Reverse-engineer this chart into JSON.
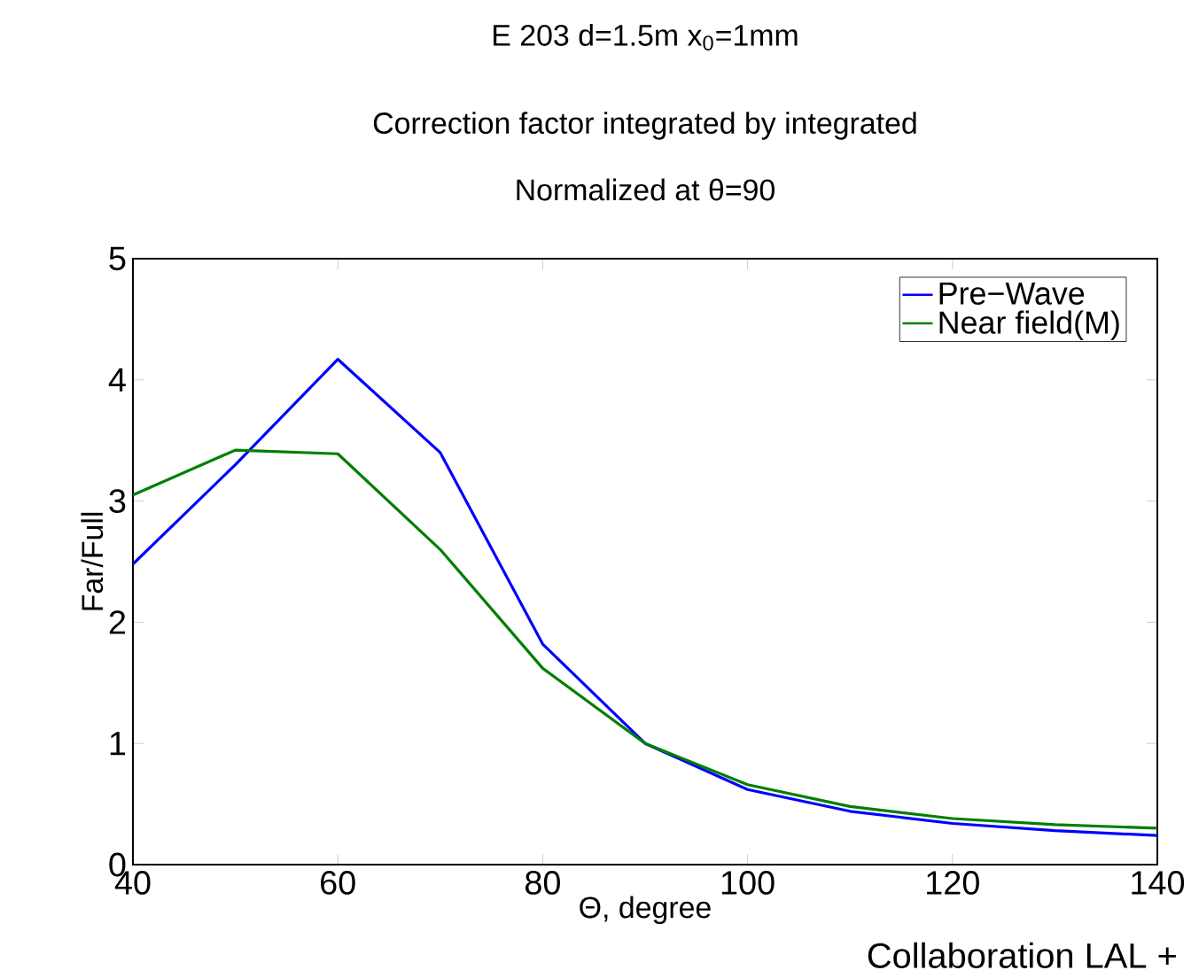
{
  "chart_data": {
    "type": "line",
    "title": "E 203 d=1.5m x$_{0}$=1mm",
    "subtitle": "Correction factor integrated by integrated",
    "annotations": [
      "Normalized at θ=90",
      "Collaboration LAL +"
    ],
    "xlabel": "Θ, degree",
    "ylabel": "Far/Full",
    "x": [
      40,
      50,
      60,
      70,
      80,
      90,
      100,
      110,
      120,
      130,
      140
    ],
    "series": [
      {
        "name": "Pre−Wave",
        "color": "#0000ff",
        "values": [
          2.48,
          3.3,
          4.17,
          3.4,
          1.82,
          1.0,
          0.62,
          0.44,
          0.34,
          0.28,
          0.24
        ]
      },
      {
        "name": "Near field(M)",
        "color": "#007f00",
        "values": [
          3.05,
          3.42,
          3.39,
          2.6,
          1.62,
          1.0,
          0.66,
          0.48,
          0.38,
          0.33,
          0.3
        ]
      }
    ],
    "xlim": [
      40,
      140
    ],
    "ylim": [
      0,
      5
    ],
    "xticks": [
      40,
      60,
      80,
      100,
      120,
      140
    ],
    "yticks": [
      0,
      1,
      2,
      3,
      4,
      5
    ],
    "legend": "top right"
  }
}
